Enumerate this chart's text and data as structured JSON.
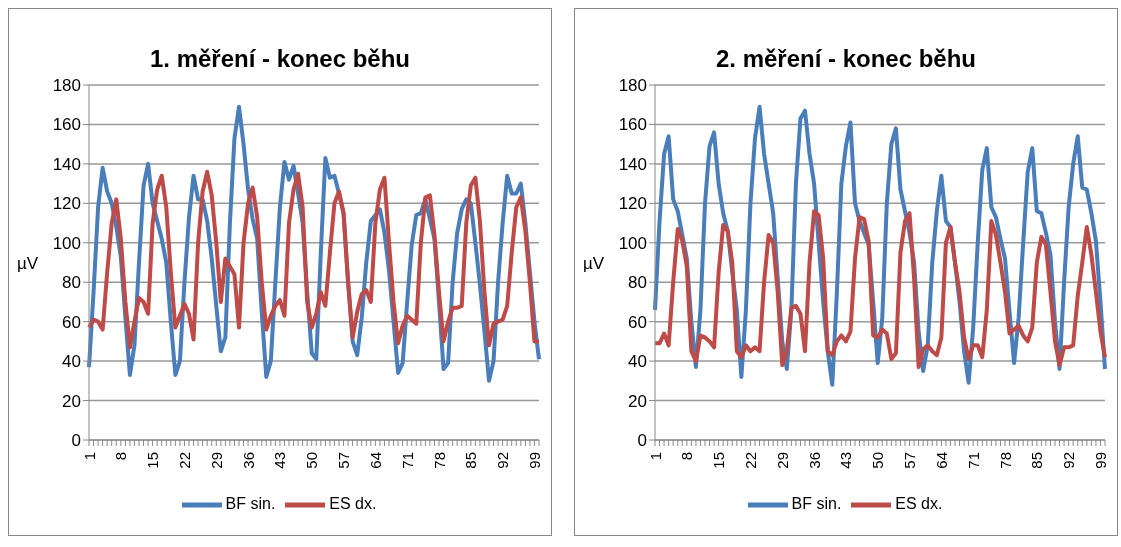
{
  "chart_data": [
    {
      "type": "line",
      "title": "1. měření - konec běhu",
      "ylabel": "µV",
      "categories": [
        "1",
        null,
        null,
        null,
        null,
        null,
        null,
        "8",
        null,
        null,
        null,
        null,
        null,
        null,
        "15",
        null,
        null,
        null,
        null,
        null,
        null,
        "22",
        null,
        null,
        null,
        null,
        null,
        null,
        "29",
        null,
        null,
        null,
        null,
        null,
        null,
        "36",
        null,
        null,
        null,
        null,
        null,
        null,
        "43",
        null,
        null,
        null,
        null,
        null,
        null,
        "50",
        null,
        null,
        null,
        null,
        null,
        null,
        "57",
        null,
        null,
        null,
        null,
        null,
        null,
        "64",
        null,
        null,
        null,
        null,
        null,
        null,
        "71",
        null,
        null,
        null,
        null,
        null,
        null,
        "78",
        null,
        null,
        null,
        null,
        null,
        null,
        "85",
        null,
        null,
        null,
        null,
        null,
        null,
        "92",
        null,
        null,
        null,
        null,
        null,
        null,
        "99",
        null
      ],
      "series": [
        {
          "name": "BF sin.",
          "color": "#4a7ebb",
          "values": [
            37,
            75,
            118,
            138,
            126,
            120,
            108,
            93,
            62,
            33,
            48,
            90,
            129,
            140,
            120,
            111,
            102,
            90,
            60,
            33,
            40,
            80,
            113,
            134,
            122,
            122,
            111,
            92,
            68,
            45,
            52,
            110,
            153,
            169,
            150,
            127,
            112,
            102,
            65,
            32,
            40,
            80,
            118,
            141,
            132,
            139,
            125,
            110,
            75,
            44,
            41,
            95,
            143,
            133,
            134,
            125,
            115,
            80,
            50,
            43,
            62,
            90,
            111,
            114,
            117,
            105,
            86,
            60,
            34,
            39,
            70,
            99,
            114,
            115,
            122,
            112,
            102,
            70,
            36,
            39,
            80,
            105,
            117,
            122,
            120,
            100,
            79,
            55,
            30,
            40,
            80,
            110,
            134,
            125,
            125,
            130,
            110,
            85,
            60,
            41
          ]
        },
        {
          "name": "ES dx.",
          "color": "#be4b48",
          "values": [
            57,
            61,
            60,
            56,
            85,
            110,
            122,
            102,
            70,
            47,
            60,
            72,
            70,
            64,
            110,
            127,
            134,
            118,
            85,
            57,
            63,
            69,
            64,
            51,
            100,
            126,
            136,
            124,
            100,
            70,
            92,
            88,
            84,
            57,
            100,
            120,
            128,
            113,
            80,
            56,
            63,
            68,
            71,
            63,
            110,
            127,
            135,
            118,
            70,
            57,
            64,
            75,
            68,
            95,
            120,
            126,
            115,
            80,
            52,
            65,
            74,
            76,
            70,
            110,
            127,
            133,
            100,
            70,
            49,
            58,
            63,
            61,
            59,
            100,
            123,
            124,
            104,
            75,
            50,
            60,
            67,
            67,
            68,
            110,
            129,
            133,
            111,
            75,
            48,
            59,
            60,
            61,
            68,
            95,
            118,
            123,
            106,
            80,
            50,
            50
          ]
        }
      ],
      "ylim": [
        0,
        180
      ],
      "yticks": [
        0,
        20,
        40,
        60,
        80,
        100,
        120,
        140,
        160,
        180
      ],
      "grid": "y",
      "legend": "bottom",
      "marker": "none",
      "line_style": "solid"
    },
    {
      "type": "line",
      "title": "2. měření - konec běhu",
      "ylabel": "µV",
      "categories": [
        "1",
        null,
        null,
        null,
        null,
        null,
        null,
        "8",
        null,
        null,
        null,
        null,
        null,
        null,
        "15",
        null,
        null,
        null,
        null,
        null,
        null,
        "22",
        null,
        null,
        null,
        null,
        null,
        null,
        "29",
        null,
        null,
        null,
        null,
        null,
        null,
        "36",
        null,
        null,
        null,
        null,
        null,
        null,
        "43",
        null,
        null,
        null,
        null,
        null,
        null,
        "50",
        null,
        null,
        null,
        null,
        null,
        null,
        "57",
        null,
        null,
        null,
        null,
        null,
        null,
        "64",
        null,
        null,
        null,
        null,
        null,
        null,
        "71",
        null,
        null,
        null,
        null,
        null,
        null,
        "78",
        null,
        null,
        null,
        null,
        null,
        null,
        "85",
        null,
        null,
        null,
        null,
        null,
        null,
        "92",
        null,
        null,
        null,
        null,
        null,
        null,
        "99",
        null
      ],
      "series": [
        {
          "name": "BF sin.",
          "color": "#4a7ebb",
          "values": [
            66,
            111,
            145,
            154,
            122,
            116,
            104,
            92,
            60,
            37,
            66,
            120,
            149,
            156,
            130,
            115,
            106,
            85,
            66,
            32,
            66,
            120,
            153,
            169,
            145,
            130,
            115,
            82,
            50,
            36,
            66,
            130,
            163,
            167,
            145,
            130,
            100,
            70,
            45,
            28,
            74,
            130,
            149,
            161,
            120,
            111,
            105,
            99,
            70,
            39,
            62,
            120,
            150,
            158,
            127,
            116,
            105,
            90,
            55,
            35,
            48,
            90,
            116,
            134,
            111,
            108,
            90,
            70,
            45,
            29,
            57,
            100,
            137,
            148,
            118,
            113,
            102,
            92,
            65,
            39,
            62,
            100,
            136,
            148,
            116,
            115,
            105,
            94,
            60,
            36,
            80,
            118,
            140,
            154,
            128,
            127,
            115,
            101,
            70,
            36
          ]
        },
        {
          "name": "ES dx.",
          "color": "#be4b48",
          "values": [
            49,
            49,
            54,
            48,
            80,
            107,
            101,
            88,
            45,
            40,
            53,
            52,
            50,
            47,
            85,
            109,
            106,
            90,
            45,
            42,
            48,
            45,
            47,
            45,
            80,
            104,
            100,
            75,
            38,
            45,
            67,
            68,
            64,
            45,
            90,
            116,
            114,
            92,
            45,
            43,
            50,
            53,
            50,
            55,
            92,
            113,
            112,
            101,
            53,
            52,
            56,
            54,
            41,
            44,
            95,
            111,
            115,
            82,
            37,
            46,
            48,
            45,
            43,
            52,
            100,
            108,
            90,
            75,
            52,
            41,
            48,
            48,
            42,
            66,
            111,
            104,
            90,
            75,
            54,
            56,
            58,
            53,
            50,
            57,
            90,
            103,
            99,
            75,
            50,
            38,
            47,
            47,
            48,
            73,
            90,
            108,
            94,
            75,
            55,
            42
          ]
        }
      ],
      "ylim": [
        0,
        180
      ],
      "yticks": [
        0,
        20,
        40,
        60,
        80,
        100,
        120,
        140,
        160,
        180
      ],
      "grid": "y",
      "legend": "bottom",
      "marker": "none",
      "line_style": "solid"
    }
  ]
}
